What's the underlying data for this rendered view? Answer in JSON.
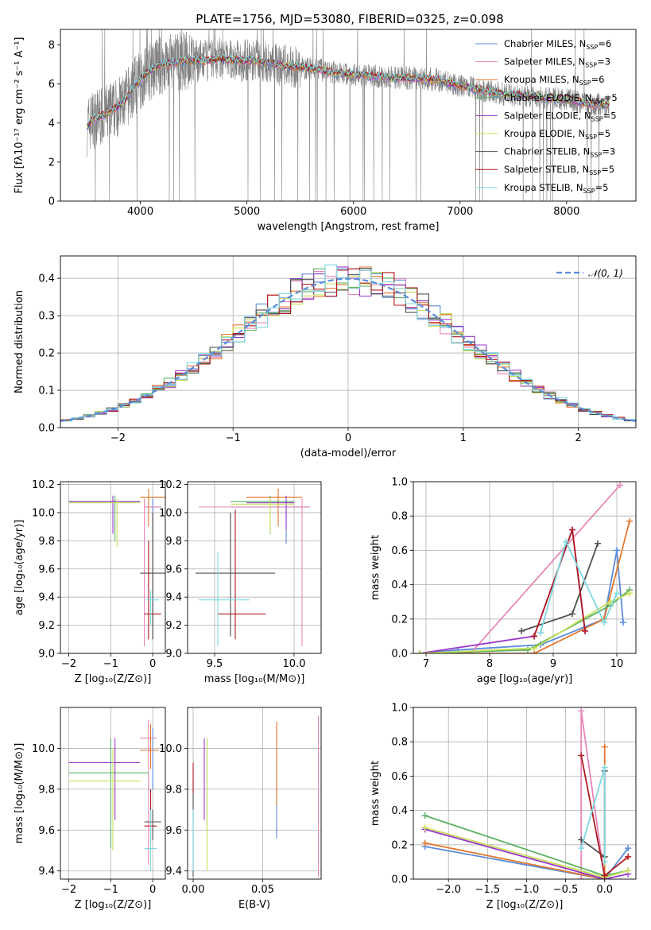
{
  "figure_title": "PLATE=1756, MJD=53080, FIBERID=0325, z=0.098",
  "series": [
    {
      "name": "Chabrier MILES",
      "nssp": "6",
      "color": "#5b8bd8"
    },
    {
      "name": "Salpeter MILES",
      "nssp": "3",
      "color": "#e587b8"
    },
    {
      "name": "Kroupa MILES",
      "nssp": "6",
      "color": "#e1762c"
    },
    {
      "name": "Chabrier ELODIE",
      "nssp": "5",
      "color": "#5bb060"
    },
    {
      "name": "Salpeter ELODIE",
      "nssp": "5",
      "color": "#9a38c8"
    },
    {
      "name": "Kroupa ELODIE",
      "nssp": "5",
      "color": "#c6e05a"
    },
    {
      "name": "Chabrier STELIB",
      "nssp": "3",
      "color": "#505050"
    },
    {
      "name": "Salpeter STELIB",
      "nssp": "5",
      "color": "#b01a20"
    },
    {
      "name": "Kroupa STELIB",
      "nssp": "5",
      "color": "#7dd8e0"
    }
  ],
  "chart_data": [
    {
      "id": "spectrum",
      "type": "line",
      "xlabel": "wavelength [Angstrom, rest frame]",
      "ylabel": "Flux [fλ10⁻¹⁷ erg cm⁻² s⁻¹ A⁻¹]",
      "xlim": [
        3250,
        8650
      ],
      "ylim": [
        0,
        8.8
      ],
      "xticks": [
        4000,
        5000,
        6000,
        7000,
        8000
      ],
      "yticks": [
        0,
        2,
        4,
        6,
        8
      ],
      "legend": "upper-right",
      "legend_suffix": ", N",
      "legend_sub": "SSP",
      "continuum_x": [
        3500,
        3550,
        3650,
        3750,
        3850,
        3950,
        4050,
        4150,
        4300,
        4450,
        4600,
        4750,
        4900,
        5050,
        5200,
        5400,
        5600,
        5800,
        6000,
        6200,
        6400,
        6600,
        6800,
        7000,
        7200,
        7400,
        7600,
        7800,
        8000,
        8200,
        8400
      ],
      "continuum_y": [
        3.8,
        4.2,
        4.4,
        4.7,
        5.1,
        5.9,
        6.5,
        6.9,
        7.1,
        7.2,
        7.2,
        7.3,
        7.2,
        7.2,
        7.1,
        6.9,
        6.8,
        6.6,
        6.5,
        6.4,
        6.3,
        6.3,
        6.2,
        5.9,
        5.7,
        5.5,
        5.4,
        5.3,
        5.2,
        5.0,
        4.9
      ]
    },
    {
      "id": "residuals",
      "type": "step",
      "xlabel": "(data-model)/error",
      "ylabel": "Normed distribution",
      "xlim": [
        -2.5,
        2.5
      ],
      "ylim": [
        0,
        0.46
      ],
      "xticks": [
        -2,
        -1,
        0,
        1,
        2
      ],
      "yticks": [
        0.0,
        0.1,
        0.2,
        0.3,
        0.4
      ],
      "grid": true,
      "legend": "upper-right",
      "reference": {
        "name": "𝒩(0, 1)",
        "mean": 0,
        "sigma": 1,
        "color": "#5b8bd8"
      },
      "bin_width": 0.1
    },
    {
      "id": "age_vs_Z",
      "type": "errorbar",
      "xlabel": "Z [log₁₀(Z/Z⊙)]",
      "ylabel": "age  [log₁₀(age/yr)]",
      "xlim": [
        -2.2,
        0.3
      ],
      "ylim": [
        9.0,
        10.22
      ],
      "xticks": [
        -2,
        -1,
        0
      ],
      "yticks": [
        9.0,
        9.2,
        9.4,
        9.6,
        9.8,
        10.0,
        10.2
      ],
      "grid": true,
      "points": [
        {
          "s": 0,
          "x": 0.0,
          "xlo": -0.2,
          "xhi": 0.2,
          "y": 10.04,
          "ylo": 9.1,
          "yhi": 10.1
        },
        {
          "s": 1,
          "x": -0.2,
          "xlo": -0.2,
          "xhi": 0.2,
          "y": 10.04,
          "ylo": 9.05,
          "yhi": 10.1
        },
        {
          "s": 2,
          "x": -0.1,
          "xlo": -0.3,
          "xhi": 0.3,
          "y": 10.11,
          "ylo": 9.9,
          "yhi": 10.17
        },
        {
          "s": 3,
          "x": -0.9,
          "xlo": -2.0,
          "xhi": -0.3,
          "y": 10.08,
          "ylo": 9.8,
          "yhi": 10.12
        },
        {
          "s": 4,
          "x": -0.95,
          "xlo": -2.0,
          "xhi": -0.3,
          "y": 10.08,
          "ylo": 9.85,
          "yhi": 10.12
        },
        {
          "s": 5,
          "x": -0.85,
          "xlo": -2.0,
          "xhi": -0.3,
          "y": 10.07,
          "ylo": 9.76,
          "yhi": 10.1
        },
        {
          "s": 6,
          "x": 0.0,
          "xlo": -0.3,
          "xhi": 0.3,
          "y": 9.57,
          "ylo": 9.1,
          "yhi": 10.0
        },
        {
          "s": 7,
          "x": -0.1,
          "xlo": -0.2,
          "xhi": 0.2,
          "y": 9.28,
          "ylo": 9.1,
          "yhi": 9.8
        },
        {
          "s": 8,
          "x": -0.05,
          "xlo": -0.15,
          "xhi": 0.15,
          "y": 9.38,
          "ylo": 9.2,
          "yhi": 9.45
        }
      ]
    },
    {
      "id": "age_vs_mass",
      "type": "errorbar",
      "xlabel": "mass [log₁₀(M/M⊙)]",
      "ylabel": "",
      "xlim": [
        9.33,
        10.17
      ],
      "ylim": [
        9.0,
        10.22
      ],
      "xticks": [
        9.5,
        10.0
      ],
      "yticks": [
        9.0,
        9.2,
        9.4,
        9.6,
        9.8,
        10.0,
        10.2
      ],
      "grid": true,
      "points": [
        {
          "s": 0,
          "x": 9.95,
          "xlo": 9.6,
          "xhi": 10.1,
          "y": 10.04,
          "ylo": 9.78,
          "yhi": 10.08
        },
        {
          "s": 1,
          "x": 10.05,
          "xlo": 9.4,
          "xhi": 10.1,
          "y": 10.04,
          "ylo": 9.05,
          "yhi": 10.1
        },
        {
          "s": 2,
          "x": 9.9,
          "xlo": 9.7,
          "xhi": 10.05,
          "y": 10.11,
          "ylo": 9.9,
          "yhi": 10.17
        },
        {
          "s": 3,
          "x": 9.85,
          "xlo": 9.6,
          "xhi": 10.0,
          "y": 10.08,
          "ylo": 9.85,
          "yhi": 10.12
        },
        {
          "s": 4,
          "x": 9.95,
          "xlo": 9.7,
          "xhi": 10.0,
          "y": 10.07,
          "ylo": 9.88,
          "yhi": 10.12
        },
        {
          "s": 5,
          "x": 9.85,
          "xlo": 9.6,
          "xhi": 10.0,
          "y": 10.06,
          "ylo": 9.86,
          "yhi": 10.1
        },
        {
          "s": 6,
          "x": 9.6,
          "xlo": 9.38,
          "xhi": 9.88,
          "y": 9.57,
          "ylo": 9.12,
          "yhi": 10.0
        },
        {
          "s": 7,
          "x": 9.63,
          "xlo": 9.52,
          "xhi": 9.82,
          "y": 9.28,
          "ylo": 9.1,
          "yhi": 10.02
        },
        {
          "s": 8,
          "x": 9.52,
          "xlo": 9.4,
          "xhi": 9.72,
          "y": 9.38,
          "ylo": 9.05,
          "yhi": 9.72
        }
      ]
    },
    {
      "id": "weight_vs_age",
      "type": "line",
      "xlabel": "age  [log₁₀(age/yr)]",
      "ylabel": "mass weight",
      "xlim": [
        6.8,
        10.3
      ],
      "ylim": [
        0,
        1.0
      ],
      "xticks": [
        7,
        8,
        9,
        10
      ],
      "yticks": [
        0.0,
        0.2,
        0.4,
        0.6,
        0.8,
        1.0
      ],
      "grid": true,
      "lines": [
        {
          "s": 0,
          "x": [
            6.9,
            7.5,
            8.8,
            9.8,
            10.0,
            10.1
          ],
          "y": [
            0.0,
            0.02,
            0.05,
            0.2,
            0.6,
            0.18
          ]
        },
        {
          "s": 1,
          "x": [
            6.9,
            7.7,
            10.05
          ],
          "y": [
            0.0,
            0.0,
            0.98
          ]
        },
        {
          "s": 2,
          "x": [
            6.9,
            8.7,
            9.8,
            10.2
          ],
          "y": [
            0.0,
            0.0,
            0.2,
            0.77
          ]
        },
        {
          "s": 3,
          "x": [
            6.9,
            8.6,
            9.9,
            10.2
          ],
          "y": [
            0.0,
            0.02,
            0.28,
            0.37
          ]
        },
        {
          "s": 4,
          "x": [
            6.9,
            8.7,
            9.3,
            9.5
          ],
          "y": [
            0.0,
            0.1,
            0.72,
            0.13
          ]
        },
        {
          "s": 5,
          "x": [
            6.9,
            8.7,
            9.9,
            10.2
          ],
          "y": [
            0.0,
            0.03,
            0.3,
            0.35
          ]
        },
        {
          "s": 6,
          "x": [
            8.5,
            9.3,
            9.7
          ],
          "y": [
            0.13,
            0.23,
            0.64
          ]
        },
        {
          "s": 7,
          "x": [
            8.7,
            9.3,
            9.5
          ],
          "y": [
            0.1,
            0.72,
            0.13
          ]
        },
        {
          "s": 8,
          "x": [
            8.8,
            9.2,
            9.8,
            10.0
          ],
          "y": [
            0.12,
            0.65,
            0.18,
            0.35
          ]
        }
      ]
    },
    {
      "id": "mass_vs_Z",
      "type": "errorbar",
      "xlabel": "Z [log₁₀(Z/Z⊙)]",
      "ylabel": "mass [log₁₀(M/M⊙)]",
      "xlim": [
        -2.2,
        0.3
      ],
      "ylim": [
        9.36,
        10.2
      ],
      "xticks": [
        -2,
        -1,
        0
      ],
      "yticks": [
        9.4,
        9.6,
        9.8,
        10.0
      ],
      "grid": true,
      "points": [
        {
          "s": 0,
          "x": 0.0,
          "xlo": -0.15,
          "xhi": 0.15,
          "y": 9.99,
          "ylo": 9.8,
          "yhi": 10.1
        },
        {
          "s": 1,
          "x": -0.1,
          "xlo": -0.3,
          "xhi": 0.1,
          "y": 10.05,
          "ylo": 9.43,
          "yhi": 10.14
        },
        {
          "s": 2,
          "x": -0.05,
          "xlo": -0.3,
          "xhi": 0.15,
          "y": 9.99,
          "ylo": 9.9,
          "yhi": 10.12
        },
        {
          "s": 3,
          "x": -1.0,
          "xlo": -2.0,
          "xhi": -0.1,
          "y": 9.88,
          "ylo": 9.51,
          "yhi": 10.05
        },
        {
          "s": 4,
          "x": -0.9,
          "xlo": -2.0,
          "xhi": -0.3,
          "y": 9.93,
          "ylo": 9.65,
          "yhi": 10.05
        },
        {
          "s": 5,
          "x": -0.95,
          "xlo": -2.0,
          "xhi": -0.3,
          "y": 9.84,
          "ylo": 9.5,
          "yhi": 10.0
        },
        {
          "s": 6,
          "x": 0.0,
          "xlo": -0.2,
          "xhi": 0.2,
          "y": 9.64,
          "ylo": 9.55,
          "yhi": 9.7
        },
        {
          "s": 7,
          "x": -0.05,
          "xlo": -0.2,
          "xhi": 0.1,
          "y": 9.62,
          "ylo": 9.53,
          "yhi": 9.8
        },
        {
          "s": 8,
          "x": -0.05,
          "xlo": -0.2,
          "xhi": 0.1,
          "y": 9.51,
          "ylo": 9.4,
          "yhi": 9.7
        }
      ]
    },
    {
      "id": "mass_vs_ebv",
      "type": "errorbar",
      "xlabel": "E(B-V)",
      "ylabel": "",
      "xlim": [
        -0.004,
        0.092
      ],
      "ylim": [
        9.36,
        10.2
      ],
      "xticks": [
        0.0,
        0.05
      ],
      "yticks": [
        9.4,
        9.6,
        9.8,
        10.0
      ],
      "grid": true,
      "points": [
        {
          "s": 0,
          "x": 0.06,
          "y": 9.75,
          "ylo": 9.56,
          "yhi": 9.95
        },
        {
          "s": 1,
          "x": 0.09,
          "y": 9.8,
          "ylo": 9.37,
          "yhi": 10.16
        },
        {
          "s": 2,
          "x": 0.06,
          "y": 9.95,
          "ylo": 9.72,
          "yhi": 10.13
        },
        {
          "s": 3,
          "x": 0.01,
          "y": 9.88,
          "ylo": 9.6,
          "yhi": 10.05
        },
        {
          "s": 4,
          "x": 0.008,
          "y": 9.9,
          "ylo": 9.65,
          "yhi": 10.05
        },
        {
          "s": 5,
          "x": 0.01,
          "y": 9.84,
          "ylo": 9.4,
          "yhi": 10.05
        },
        {
          "s": 6,
          "x": 0.0,
          "y": 9.64,
          "ylo": 9.37,
          "yhi": 9.85
        },
        {
          "s": 7,
          "x": 0.0,
          "y": 9.85,
          "ylo": 9.78,
          "yhi": 9.93
        },
        {
          "s": 8,
          "x": 0.0,
          "y": 9.55,
          "ylo": 9.4,
          "yhi": 9.7
        }
      ]
    },
    {
      "id": "weight_vs_Z",
      "type": "line",
      "xlabel": "Z [log₁₀(Z/Z⊙)]",
      "ylabel": "mass weight",
      "xlim": [
        -2.45,
        0.4
      ],
      "ylim": [
        0,
        1.0
      ],
      "xticks": [
        -2.0,
        -1.5,
        -1.0,
        -0.5,
        0.0
      ],
      "yticks": [
        0.0,
        0.2,
        0.4,
        0.6,
        0.8,
        1.0
      ],
      "grid": true,
      "lines": [
        {
          "s": 0,
          "x": [
            -2.3,
            0.0,
            0.3
          ],
          "y": [
            0.19,
            0.0,
            0.18
          ]
        },
        {
          "s": 1,
          "x": [
            -0.3,
            -0.3,
            0.0
          ],
          "y": [
            0.0,
            0.98,
            0.0
          ]
        },
        {
          "s": 2,
          "x": [
            -2.3,
            0.0,
            0.0
          ],
          "y": [
            0.21,
            0.0,
            0.77
          ]
        },
        {
          "s": 3,
          "x": [
            -2.3,
            0.0,
            0.3
          ],
          "y": [
            0.37,
            0.02,
            0.05
          ]
        },
        {
          "s": 4,
          "x": [
            -2.3,
            0.0,
            0.3
          ],
          "y": [
            0.29,
            0.0,
            0.03
          ]
        },
        {
          "s": 5,
          "x": [
            -2.3,
            0.0,
            0.3
          ],
          "y": [
            0.3,
            0.01,
            0.05
          ]
        },
        {
          "s": 6,
          "x": [
            -0.3,
            0.0,
            0.0
          ],
          "y": [
            0.23,
            0.13,
            0.63
          ]
        },
        {
          "s": 7,
          "x": [
            -0.3,
            0.0,
            0.3
          ],
          "y": [
            0.72,
            0.02,
            0.13
          ]
        },
        {
          "s": 8,
          "x": [
            -0.3,
            0.0,
            0.0
          ],
          "y": [
            0.18,
            0.65,
            0.1
          ]
        }
      ]
    }
  ]
}
